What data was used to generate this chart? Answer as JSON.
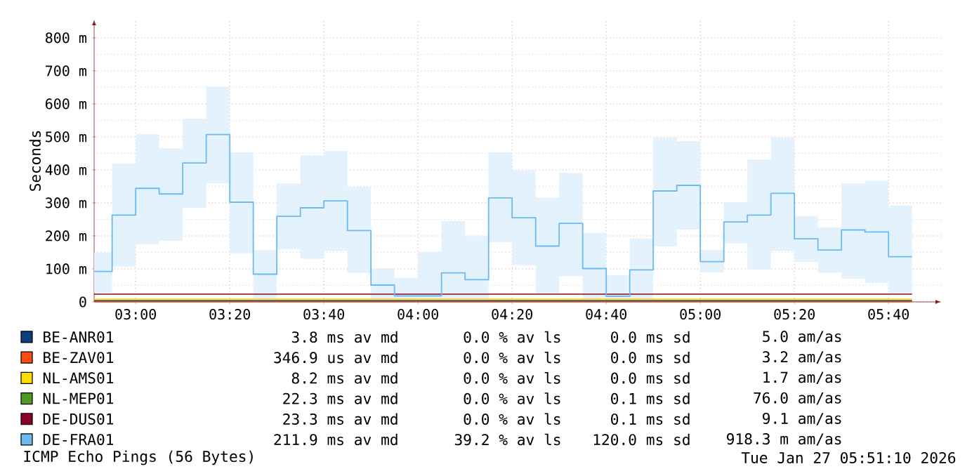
{
  "chart_data": {
    "type": "step",
    "ylabel": "Seconds",
    "xlim": [
      2.852778,
      5.852778
    ],
    "xticks": [
      {
        "value": 3.0,
        "label": "03:00"
      },
      {
        "value": 3.333333,
        "label": "03:20"
      },
      {
        "value": 3.666667,
        "label": "03:40"
      },
      {
        "value": 4.0,
        "label": "04:00"
      },
      {
        "value": 4.333333,
        "label": "04:20"
      },
      {
        "value": 4.666667,
        "label": "04:40"
      },
      {
        "value": 5.0,
        "label": "05:00"
      },
      {
        "value": 5.333333,
        "label": "05:20"
      },
      {
        "value": 5.666667,
        "label": "05:40"
      }
    ],
    "ylim": [
      0,
      855
    ],
    "yticks": [
      0,
      {
        "value": 100,
        "label": "100 m"
      },
      {
        "value": 200,
        "label": "200 m"
      },
      {
        "value": 300,
        "label": "300 m"
      },
      {
        "value": 400,
        "label": "400 m"
      },
      {
        "value": 500,
        "label": "500 m"
      },
      {
        "value": 600,
        "label": "600 m"
      },
      {
        "value": 700,
        "label": "700 m"
      },
      {
        "value": 800,
        "label": "800 m"
      }
    ],
    "grid": true,
    "legend": "bottom",
    "series": [
      {
        "name": "BE-ANR01",
        "color": "#0b3f7e",
        "type": "line",
        "x": [
          2.852778,
          5.75
        ],
        "values": [
          3.8,
          3.8
        ]
      },
      {
        "name": "BE-ZAV01",
        "color": "#ff4a10",
        "type": "line",
        "x": [
          2.852778,
          5.75
        ],
        "values": [
          0.3469,
          0.3469
        ]
      },
      {
        "name": "NL-AMS01",
        "color": "#ffdc00",
        "type": "line",
        "x": [
          2.852778,
          5.75
        ],
        "values": [
          8.2,
          8.2
        ]
      },
      {
        "name": "NL-MEP01",
        "color": "#4e9a22",
        "type": "line",
        "values": [
          null,
          null
        ]
      },
      {
        "name": "DE-DUS01",
        "color": "#8a0226",
        "type": "line",
        "x": [
          2.852778,
          5.75
        ],
        "values": [
          23.3,
          23.3
        ]
      },
      {
        "name": "DE-FRA01",
        "color": "#6cbaf0",
        "x": [
          2.852778,
          2.916667,
          3.0,
          3.083333,
          3.166667,
          3.25,
          3.333333,
          3.416667,
          3.5,
          3.583333,
          3.666667,
          3.75,
          3.833333,
          3.916667,
          4.0,
          4.083333,
          4.166667,
          4.25,
          4.333333,
          4.416667,
          4.5,
          4.583333,
          4.666667,
          4.75,
          4.833333,
          4.916667,
          5.0,
          5.083333,
          5.166667,
          5.25,
          5.333333,
          5.416667,
          5.5,
          5.583333,
          5.666667,
          5.75
        ],
        "values": [
          92,
          263,
          344,
          327,
          421,
          507,
          302,
          84,
          259,
          285,
          306,
          216,
          51,
          18,
          18,
          88,
          67,
          315,
          255,
          169,
          238,
          101,
          17,
          97,
          336,
          353,
          122,
          242,
          263,
          329,
          191,
          157,
          218,
          212,
          137,
          137
        ],
        "lower": [
          28,
          107,
          175,
          185,
          285,
          359,
          148,
          7,
          159,
          131,
          154,
          88,
          7,
          7,
          7,
          7,
          7,
          181,
          111,
          26,
          78,
          7,
          7,
          7,
          168,
          219,
          90,
          177,
          97,
          154,
          121,
          88,
          70,
          57,
          26,
          26
        ],
        "upper": [
          149,
          420,
          508,
          465,
          555,
          652,
          453,
          157,
          359,
          444,
          457,
          349,
          102,
          73,
          152,
          245,
          199,
          453,
          399,
          316,
          391,
          209,
          81,
          192,
          498,
          487,
          157,
          302,
          431,
          498,
          260,
          226,
          359,
          367,
          292,
          292
        ]
      }
    ],
    "annotations": [
      "3.8 ms av md",
      "0.0 % av ls",
      "0.0 ms sd",
      "5.0 am/as",
      "346.9 us av md",
      "0.0 % av ls",
      "0.0 ms sd",
      "3.2 am/as",
      "8.2 ms av md",
      "0.0 % av ls",
      "0.0 ms sd",
      "1.7 am/as",
      "22.3 ms av md",
      "0.0 % av ls",
      "0.1 ms sd",
      "76.0 am/as",
      "23.3 ms av md",
      "0.0 % av ls",
      "0.1 ms sd",
      "9.1 am/as",
      "211.9 ms av md",
      "39.2 % av ls",
      "120.0 ms sd",
      "918.3 m am/as",
      "ICMP Echo Pings (56 Bytes)",
      "Tue Jan 27 05:51:10 2026"
    ]
  }
}
